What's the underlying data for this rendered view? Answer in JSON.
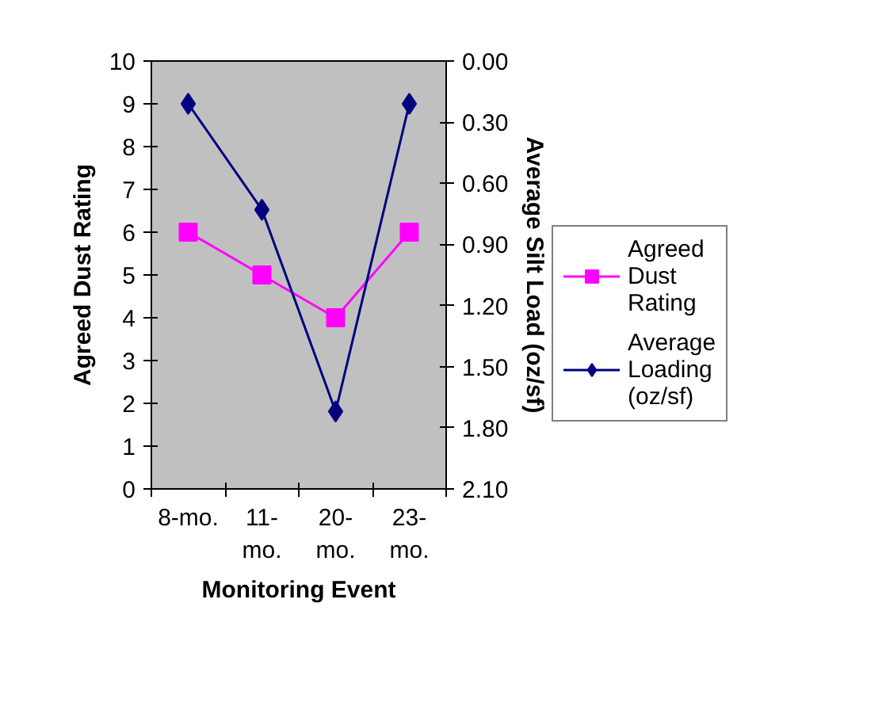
{
  "chart_data": {
    "type": "line",
    "xlabel": "Monitoring Event",
    "ylabel": "Agreed Dust Rating",
    "y2label": "Average Silt Load (oz/sf)",
    "categories": [
      "8-mo.",
      "11-\nmo.",
      "20-\nmo.",
      "23-\nmo."
    ],
    "series": [
      {
        "name": "Agreed Dust Rating",
        "color": "#ff00ff",
        "marker": "square",
        "values": [
          6,
          5,
          4,
          6
        ]
      },
      {
        "name": "Average Loading (oz/sf)",
        "color": "#000080",
        "marker": "diamond",
        "axis": "y2",
        "values": [
          0.21,
          0.73,
          1.72,
          0.21
        ]
      }
    ],
    "ylim": [
      0,
      10
    ],
    "yticks": [
      0,
      1,
      2,
      3,
      4,
      5,
      6,
      7,
      8,
      9,
      10
    ],
    "y2lim": [
      2.1,
      0.0
    ],
    "y2ticks": [
      {
        "value": 0.0,
        "label": "0.00"
      },
      {
        "value": 0.3,
        "label": "0.30"
      },
      {
        "value": 0.6,
        "label": "0.60"
      },
      {
        "value": 0.9,
        "label": "0.90"
      },
      {
        "value": 1.2,
        "label": "1.20"
      },
      {
        "value": 1.5,
        "label": "1.50"
      },
      {
        "value": 1.8,
        "label": "1.80"
      },
      {
        "value": 2.1,
        "label": "2.10"
      }
    ],
    "grid": false,
    "legend": "right"
  }
}
